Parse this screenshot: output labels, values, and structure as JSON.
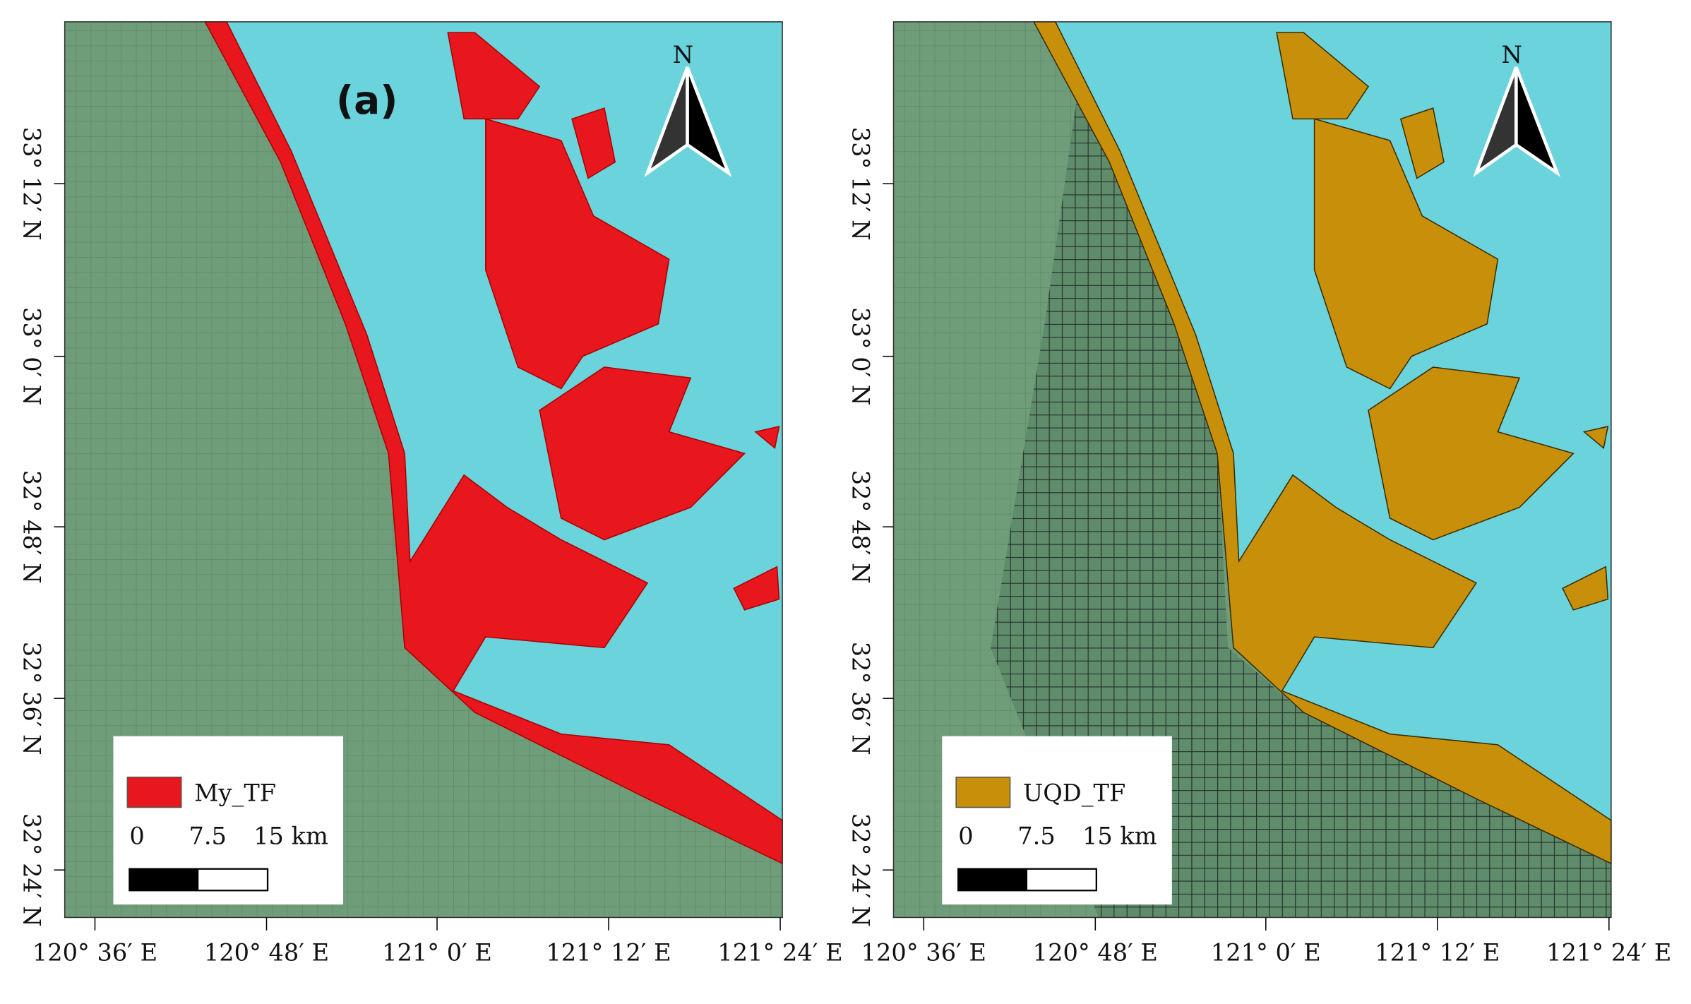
{
  "panels": [
    {
      "label": "(a)",
      "north": "N",
      "legend": "My_TF",
      "scale_labels": [
        "0",
        "7.5",
        "15 km"
      ],
      "lat_labels": [
        "33° 12′ N",
        "33° 0′ N",
        "32° 48′ N",
        "32° 36′ N",
        "32° 24′ N"
      ],
      "lon_labels": [
        "120° 36′ E",
        "120° 48′ E",
        "121° 0′ E",
        "121° 12′ E",
        "121° 24′ E"
      ]
    },
    {
      "north": "N",
      "legend": "UQD_TF",
      "scale_labels": [
        "0",
        "7.5",
        "15 km"
      ],
      "lat_labels": [
        "33° 12′ N",
        "33° 0′ N",
        "32° 48′ N",
        "32° 36′ N",
        "32° 24′ N"
      ],
      "lon_labels": [
        "120° 36′ E",
        "120° 48′ E",
        "121° 0′ E",
        "121° 12′ E",
        "121° 24′ E"
      ]
    }
  ]
}
